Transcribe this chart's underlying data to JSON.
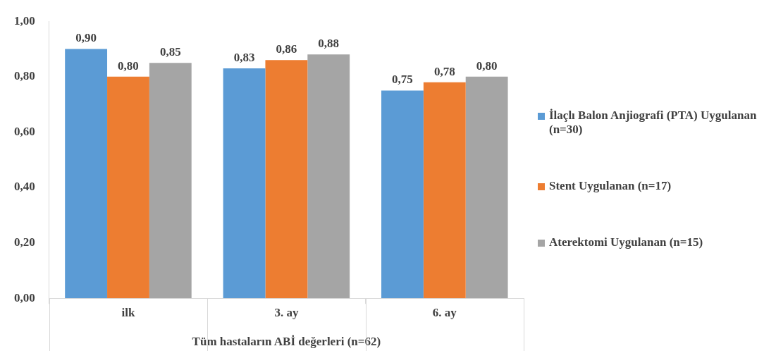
{
  "chart_data": {
    "type": "bar",
    "xlabel": "Tüm hastaların ABİ değerleri (n=62)",
    "categories": [
      "ilk",
      "3. ay",
      "6. ay"
    ],
    "series": [
      {
        "name": "İlaçlı Balon Anjiografi (PTA) Uygulanan (n=30)",
        "color": "#5b9bd5",
        "values": [
          0.9,
          0.83,
          0.75
        ],
        "value_labels": [
          "0,90",
          "0,83",
          "0,75"
        ]
      },
      {
        "name": "Stent Uygulanan (n=17)",
        "color": "#ed7d31",
        "values": [
          0.8,
          0.86,
          0.78
        ],
        "value_labels": [
          "0,80",
          "0,86",
          "0,78"
        ]
      },
      {
        "name": "Aterektomi Uygulanan (n=15)",
        "color": "#a5a5a5",
        "values": [
          0.85,
          0.88,
          0.8
        ],
        "value_labels": [
          "0,85",
          "0,88",
          "0,80"
        ]
      }
    ],
    "ylim": [
      0,
      1
    ],
    "yticks": [
      {
        "value": 0,
        "label": "0,00"
      },
      {
        "value": 0.2,
        "label": "0,20"
      },
      {
        "value": 0.4,
        "label": "0,40"
      },
      {
        "value": 0.6,
        "label": "0,60"
      },
      {
        "value": 0.8,
        "label": "0,80"
      },
      {
        "value": 1,
        "label": "1,00"
      }
    ],
    "grid": false,
    "legend": "right"
  }
}
